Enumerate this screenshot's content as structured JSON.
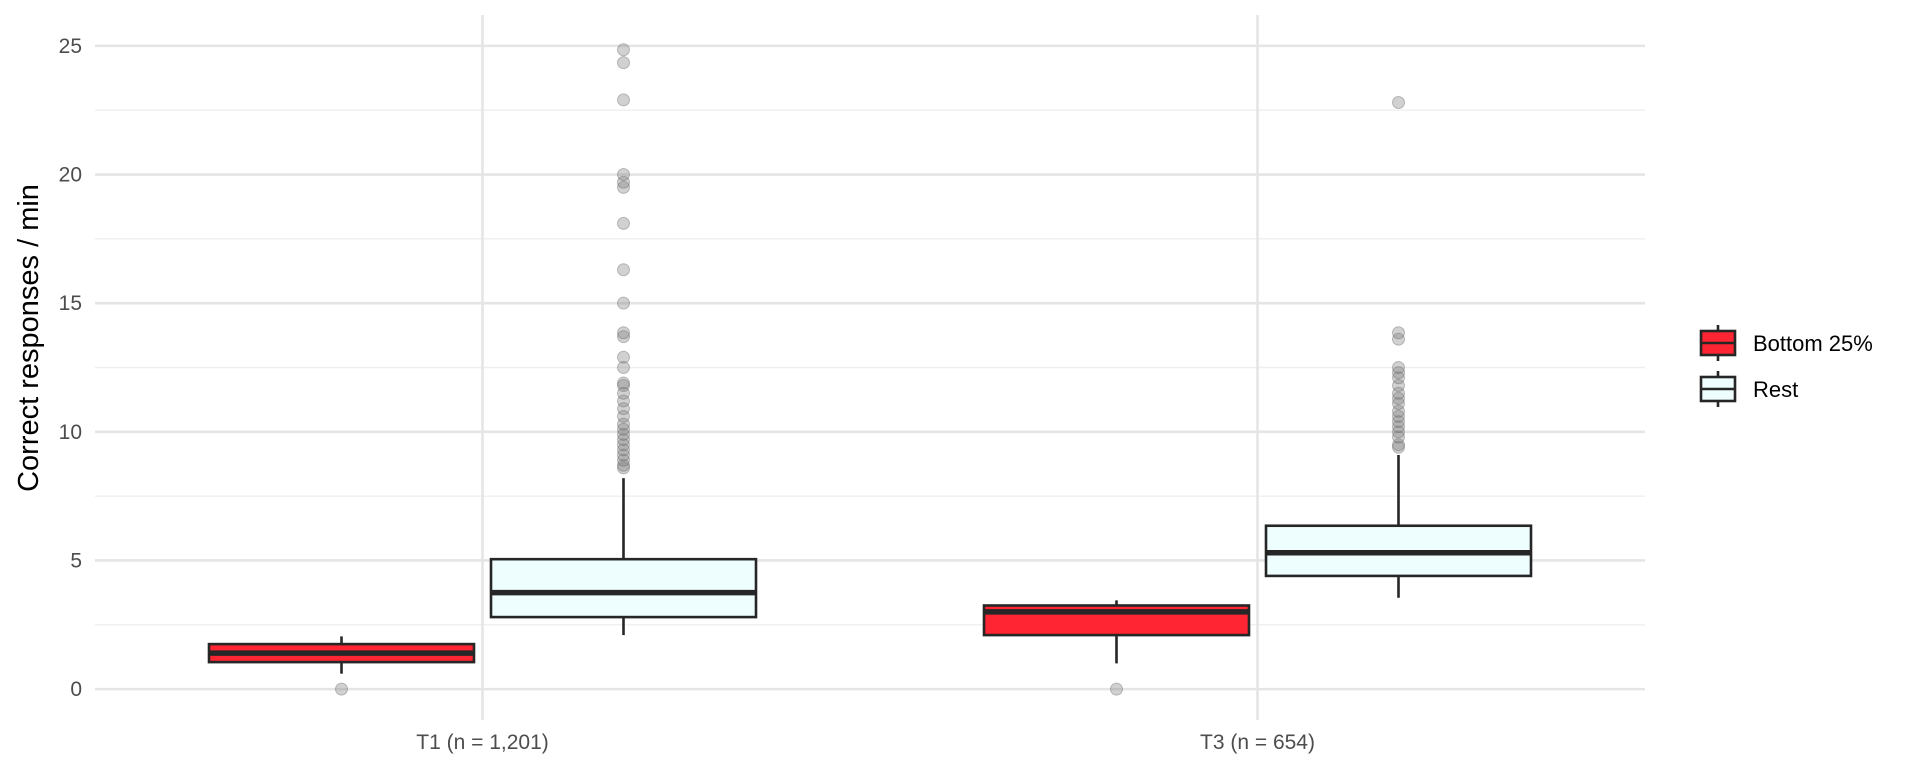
{
  "chart_data": {
    "type": "boxplot",
    "title": "",
    "xlabel": "",
    "ylabel": "Correct responses / min",
    "ylim": [
      -1.2,
      26.2
    ],
    "yticks": [
      0,
      5,
      10,
      15,
      20,
      25
    ],
    "ytick_labels": [
      "0",
      "5",
      "10",
      "15",
      "20",
      "25"
    ],
    "grid": true,
    "legend_position": "right",
    "categories": [
      "T1 (n = 1,201)",
      "T3 (n = 654)"
    ],
    "series": [
      {
        "name": "Bottom 25%",
        "fill": "#ff2533",
        "boxes": [
          {
            "category": "T1 (n = 1,201)",
            "whisker_low": 0.6,
            "q1": 1.05,
            "median": 1.4,
            "q3": 1.75,
            "whisker_high": 2.05,
            "outliers": [
              0
            ]
          },
          {
            "category": "T3 (n = 654)",
            "whisker_low": 1.0,
            "q1": 2.1,
            "median": 3.0,
            "q3": 3.25,
            "whisker_high": 3.45,
            "outliers": [
              0
            ]
          }
        ]
      },
      {
        "name": "Rest",
        "fill": "#eefdfd",
        "boxes": [
          {
            "category": "T1 (n = 1,201)",
            "whisker_low": 2.1,
            "q1": 2.8,
            "median": 3.75,
            "q3": 5.05,
            "whisker_high": 8.2,
            "outliers": [
              8.6,
              8.7,
              8.9,
              9.1,
              9.3,
              9.5,
              9.7,
              9.9,
              10.1,
              10.3,
              10.6,
              10.9,
              11.2,
              11.5,
              11.8,
              11.9,
              12.5,
              12.9,
              13.7,
              13.85,
              15.0,
              16.3,
              18.1,
              19.5,
              19.7,
              20.0,
              22.9,
              24.35,
              24.85
            ]
          },
          {
            "category": "T3 (n = 654)",
            "whisker_low": 3.55,
            "q1": 4.4,
            "median": 5.3,
            "q3": 6.35,
            "whisker_high": 9.1,
            "outliers": [
              9.4,
              9.5,
              9.8,
              10.0,
              10.2,
              10.4,
              10.6,
              10.8,
              11.1,
              11.3,
              11.5,
              11.8,
              12.1,
              12.3,
              12.5,
              13.6,
              13.85,
              22.8
            ]
          }
        ]
      }
    ],
    "colors": {
      "box_stroke": "#262626",
      "outlier": "#7a7a7a",
      "grid": "#e5e5e5"
    }
  }
}
